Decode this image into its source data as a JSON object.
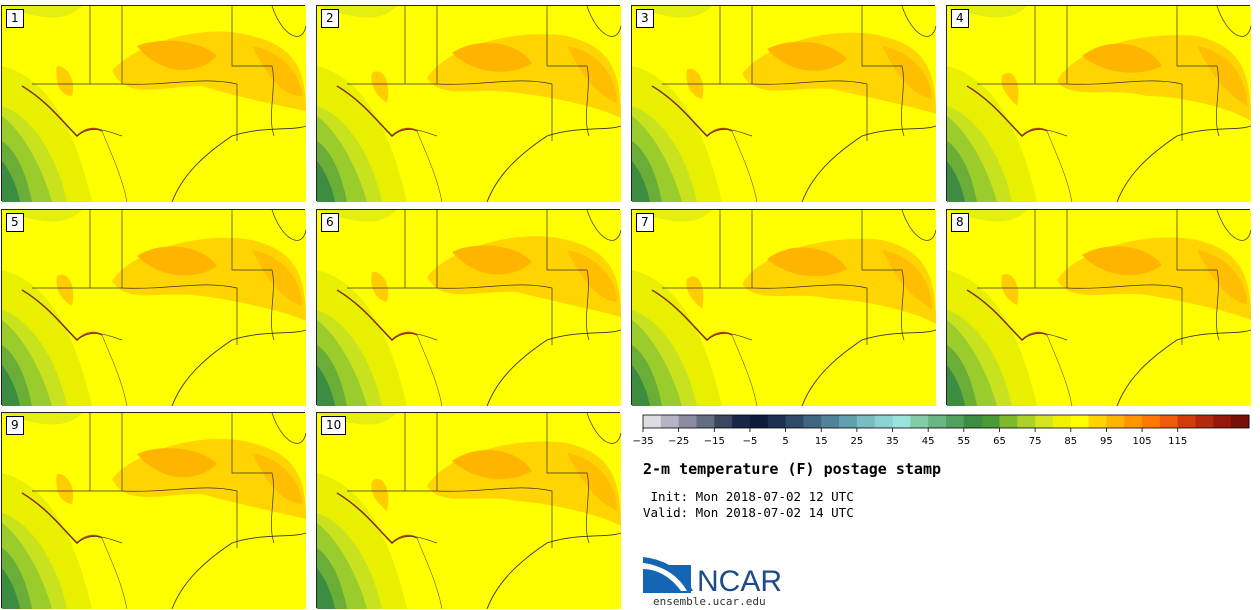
{
  "panels": [
    {
      "label": "1"
    },
    {
      "label": "2"
    },
    {
      "label": "3"
    },
    {
      "label": "4"
    },
    {
      "label": "5"
    },
    {
      "label": "6"
    },
    {
      "label": "7"
    },
    {
      "label": "8"
    },
    {
      "label": "9"
    },
    {
      "label": "10"
    }
  ],
  "colorbar": {
    "colors": [
      "#dcdce4",
      "#b4b4c4",
      "#8c8ca0",
      "#646e82",
      "#3c465e",
      "#1a2648",
      "#0c1a3c",
      "#1e2e52",
      "#2e4a6a",
      "#3e6682",
      "#50829a",
      "#62a0b0",
      "#78bcc4",
      "#8cd2d2",
      "#9ae2dc",
      "#84cca6",
      "#68b682",
      "#50a05e",
      "#3c8c42",
      "#4a9a36",
      "#7cba2c",
      "#aad228",
      "#d4e41e",
      "#f2f000",
      "#ffff00",
      "#ffd400",
      "#ffb400",
      "#ff9600",
      "#ff7800",
      "#f05a0a",
      "#d23c0c",
      "#b4280c",
      "#96180a",
      "#741008"
    ],
    "tick_labels": [
      "−35",
      "−25",
      "−15",
      "−5",
      "5",
      "15",
      "25",
      "35",
      "45",
      "55",
      "65",
      "75",
      "85",
      "95",
      "105",
      "115"
    ]
  },
  "title": "2-m temperature (F) postage stamp",
  "init_line": " Init: Mon 2018-07-02 12 UTC",
  "valid_line": "Valid: Mon 2018-07-02 14 UTC",
  "logo_text": "NCAR",
  "site": "ensemble.ucar.edu"
}
